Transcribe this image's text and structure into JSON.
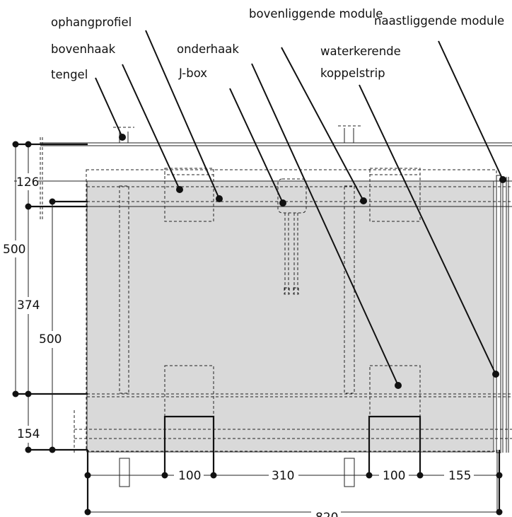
{
  "labels": {
    "ophangprofiel": "ophangprofiel",
    "bovenliggende_module": "bovenliggende module",
    "naastliggende_module": "naastliggende module",
    "bovenhaak": "bovenhaak",
    "onderhaak": "onderhaak",
    "waterkerende": "waterkerende",
    "koppelstrip": "koppelstrip",
    "tengel": "tengel",
    "jbox": "J-box"
  },
  "dimensions": {
    "d126": "126",
    "d500_outer": "500",
    "d374": "374",
    "d500_inner": "500",
    "d154": "154",
    "b100_left": "100",
    "b310": "310",
    "b100_right": "100",
    "b155": "155",
    "b820": "820"
  },
  "colors": {
    "module_fill": "#d9d9d9",
    "line": "#111111"
  }
}
